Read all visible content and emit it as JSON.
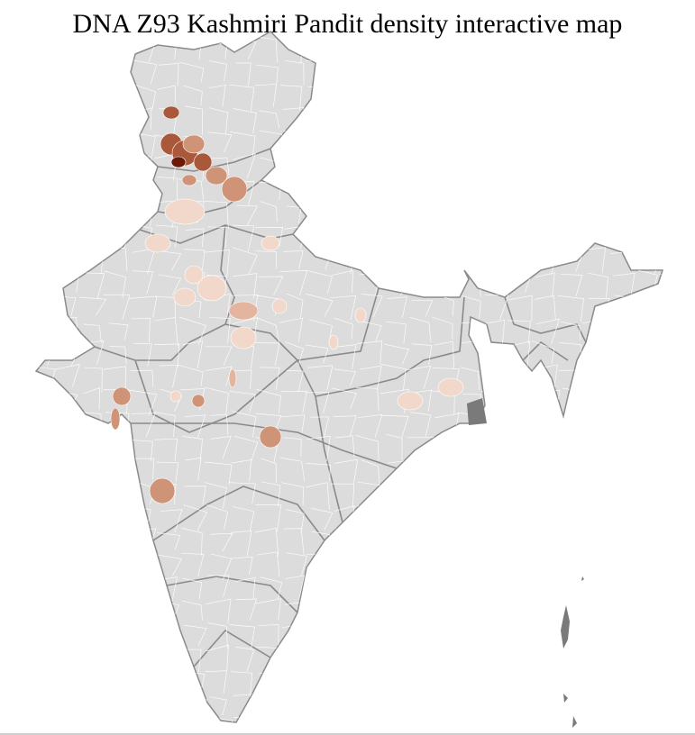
{
  "title": "DNA Z93 Kashmiri Pandit density interactive map",
  "map": {
    "base_color": "#dcdcdc",
    "district_border_color": "#ffffff",
    "state_border_color": "#8a8a8a",
    "islands_color": "#7a7a7a",
    "density_scale": [
      "#f2d8ca",
      "#e3b59e",
      "#cf9478",
      "#a9583a",
      "#6b1a0a"
    ]
  }
}
